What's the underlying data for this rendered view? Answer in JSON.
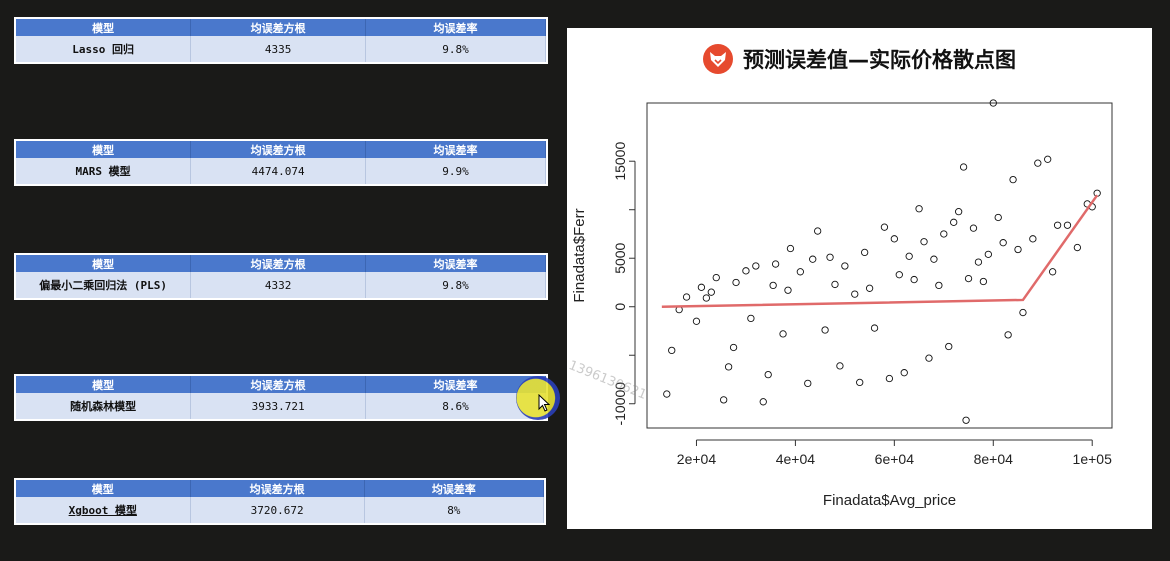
{
  "tables": [
    {
      "headers": [
        "模型",
        "均误差方根",
        "均误差率"
      ],
      "model": "Lasso 回归",
      "rmse": "4335",
      "rate": "9.8%"
    },
    {
      "headers": [
        "模型",
        "均误差方根",
        "均误差率"
      ],
      "model": "MARS 模型",
      "rmse": "4474.074",
      "rate": "9.9%"
    },
    {
      "headers": [
        "模型",
        "均误差方根",
        "均误差率"
      ],
      "model": "偏最小二乘回归法 (PLS)",
      "rmse": "4332",
      "rate": "9.8%"
    },
    {
      "headers": [
        "模型",
        "均误差方根",
        "均误差率"
      ],
      "model": "随机森林模型",
      "rmse": "3933.721",
      "rate": "8.6%"
    },
    {
      "headers": [
        "模型",
        "均误差方根",
        "均误差率"
      ],
      "model": "Xgboot 模型",
      "rmse": "3720.672",
      "rate": "8%"
    }
  ],
  "chart": {
    "title": "预测误差值—实际价格散点图",
    "logo_icon": "fox-logo-icon",
    "logo_color": "#e64a2e"
  },
  "chart_data": {
    "type": "scatter",
    "xlabel": "Finadata$Avg_price",
    "ylabel": "Finadata$Ferr",
    "xlim": [
      10000,
      104000
    ],
    "ylim": [
      -12500,
      21000
    ],
    "x_ticks": [
      20000,
      40000,
      60000,
      80000,
      100000
    ],
    "x_tick_labels": [
      "2e+04",
      "4e+04",
      "6e+04",
      "8e+04",
      "1e+05"
    ],
    "y_ticks": [
      -10000,
      -5000,
      0,
      5000,
      10000,
      15000
    ],
    "y_tick_labels": [
      "-10000",
      "",
      "0",
      "5000",
      "",
      "15000"
    ],
    "fit_line": {
      "x": [
        13000,
        86000,
        101000
      ],
      "y": [
        0,
        700,
        11500
      ],
      "color": "#e06a6a"
    },
    "series": [
      {
        "marker": "open-circle",
        "points": [
          [
            14000,
            -9000
          ],
          [
            15000,
            -4500
          ],
          [
            16500,
            -300
          ],
          [
            18000,
            1000
          ],
          [
            20000,
            -1500
          ],
          [
            21000,
            2000
          ],
          [
            22000,
            900
          ],
          [
            23000,
            1500
          ],
          [
            24000,
            3000
          ],
          [
            25500,
            -9600
          ],
          [
            26500,
            -6200
          ],
          [
            27500,
            -4200
          ],
          [
            28000,
            2500
          ],
          [
            30000,
            3700
          ],
          [
            31000,
            -1200
          ],
          [
            32000,
            4200
          ],
          [
            33500,
            -9800
          ],
          [
            34500,
            -7000
          ],
          [
            35500,
            2200
          ],
          [
            36000,
            4400
          ],
          [
            37500,
            -2800
          ],
          [
            38500,
            1700
          ],
          [
            39000,
            6000
          ],
          [
            41000,
            3600
          ],
          [
            42500,
            -7900
          ],
          [
            43500,
            4900
          ],
          [
            44500,
            7800
          ],
          [
            46000,
            -2400
          ],
          [
            47000,
            5100
          ],
          [
            48000,
            2300
          ],
          [
            49000,
            -6100
          ],
          [
            50000,
            4200
          ],
          [
            52000,
            1300
          ],
          [
            53000,
            -7800
          ],
          [
            54000,
            5600
          ],
          [
            55000,
            1900
          ],
          [
            56000,
            -2200
          ],
          [
            58000,
            8200
          ],
          [
            59000,
            -7400
          ],
          [
            60000,
            7000
          ],
          [
            61000,
            3300
          ],
          [
            62000,
            -6800
          ],
          [
            63000,
            5200
          ],
          [
            64000,
            2800
          ],
          [
            65000,
            10100
          ],
          [
            66000,
            6700
          ],
          [
            67000,
            -5300
          ],
          [
            68000,
            4900
          ],
          [
            69000,
            2200
          ],
          [
            70000,
            7500
          ],
          [
            71000,
            -4100
          ],
          [
            72000,
            8700
          ],
          [
            73000,
            9800
          ],
          [
            74000,
            14400
          ],
          [
            74500,
            -11700
          ],
          [
            75000,
            2900
          ],
          [
            76000,
            8100
          ],
          [
            77000,
            4600
          ],
          [
            78000,
            2600
          ],
          [
            79000,
            5400
          ],
          [
            80000,
            21000
          ],
          [
            81000,
            9200
          ],
          [
            82000,
            6600
          ],
          [
            83000,
            -2900
          ],
          [
            84000,
            13100
          ],
          [
            85000,
            5900
          ],
          [
            86000,
            -600
          ],
          [
            88000,
            7000
          ],
          [
            89000,
            14800
          ],
          [
            91000,
            15200
          ],
          [
            92000,
            3600
          ],
          [
            93000,
            8400
          ],
          [
            95000,
            8400
          ],
          [
            97000,
            6100
          ],
          [
            99000,
            10600
          ],
          [
            100000,
            10300
          ],
          [
            101000,
            11700
          ]
        ]
      }
    ]
  },
  "watermark": "1396130621"
}
